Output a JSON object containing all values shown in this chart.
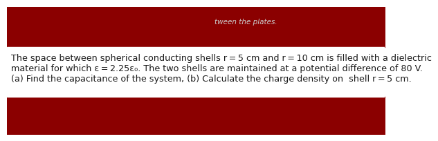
{
  "bg_color": "#ffffff",
  "top_partial_text": "tween the plates.",
  "main_text_line1": "The space between spherical conducting shells r = 5 cm and r = 10 cm is filled with a dielectric",
  "main_text_line2": "material for which ε = 2.25ε₀. The two shells are maintained at a potential difference of 80 V.",
  "main_text_line3": "(a) Find the capacitance of the system, (b) Calculate the charge density on  shell r = 5 cm.",
  "text_color": "#1a1a1a",
  "text_fontsize": 9.2,
  "red_dark": "#8B0000",
  "red_mid": "#bb0a0a",
  "red_bright": "#ee2020",
  "purple_dark": "#3a0028",
  "purple_mid": "#6a0050",
  "maroon": "#600000"
}
